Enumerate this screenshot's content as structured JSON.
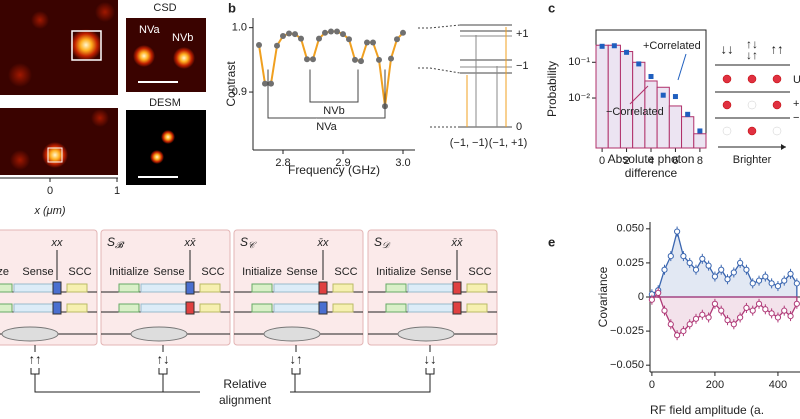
{
  "figure": {
    "panel_labels": [
      "b",
      "c",
      "e"
    ],
    "a": {
      "csd": "CSD",
      "nva": "NVa",
      "nvb": "NVb",
      "desm": "DESM",
      "xticks": [
        "0",
        "1"
      ],
      "xlabel": "x (μm)"
    },
    "b_levels": {
      "plus1": "+1",
      "minus1": "−1",
      "zero": "0",
      "state1": "(−1, −1)",
      "state2": "(−1, +1)"
    },
    "c_diagram": {
      "spins": [
        "↓↓",
        "↑↓\n↓↑",
        "↑↑"
      ],
      "caption": "Brighter",
      "side": [
        "U",
        "+",
        "−"
      ]
    },
    "d": {
      "blocks": [
        {
          "steps": [
            "ize",
            "Sense",
            "SCC"
          ],
          "gate": "xx"
        },
        {
          "name": "S",
          "sub": "𝓑",
          "steps": [
            "Initialize",
            "Sense",
            "SCC"
          ],
          "gate": "xx̄"
        },
        {
          "name": "S",
          "sub": "𝒞",
          "steps": [
            "Initialize",
            "Sense",
            "SCC"
          ],
          "gate": "x̄x"
        },
        {
          "name": "S",
          "sub": "𝒟",
          "steps": [
            "Initialize",
            "Sense",
            "SCC"
          ],
          "gate": "x̄x̄"
        }
      ],
      "alignments": [
        "↑↑",
        "↑↓",
        "↓↑",
        "↓↓"
      ],
      "caption": [
        "Relative",
        "alignment"
      ]
    }
  },
  "chart_data": [
    {
      "type": "scatter",
      "xlabel": "Frequency (GHz)",
      "ylabel": "Contrast",
      "color": "#707070",
      "fit_color": "#f0a020",
      "x": [
        2.76,
        2.77,
        2.78,
        2.79,
        2.8,
        2.81,
        2.82,
        2.83,
        2.84,
        2.85,
        2.86,
        2.87,
        2.88,
        2.89,
        2.9,
        2.91,
        2.92,
        2.93,
        2.94,
        2.95,
        2.96,
        2.97,
        2.98,
        2.99,
        3.0
      ],
      "values": [
        0.973,
        0.913,
        0.913,
        0.972,
        0.987,
        0.991,
        0.99,
        0.983,
        0.951,
        0.951,
        0.983,
        0.992,
        0.994,
        0.994,
        0.99,
        0.982,
        0.95,
        0.948,
        0.977,
        0.977,
        0.95,
        0.878,
        0.952,
        0.982,
        0.992
      ],
      "xlim": [
        2.75,
        3.02
      ],
      "ylim": [
        0.81,
        1.015
      ],
      "xticks": [
        2.8,
        2.9,
        {
          "value": 3,
          "label": "3.0"
        }
      ],
      "yticks": [
        0.9,
        {
          "value": 1,
          "label": "1.0"
        }
      ],
      "annotations": [
        "NVb",
        "NVa"
      ]
    },
    {
      "type": "step",
      "xlabel": [
        "Absolute photon",
        "difference"
      ],
      "ylabel": "Probability",
      "log_y": true,
      "x": [
        0,
        1,
        2,
        3,
        4,
        5,
        6,
        7,
        8
      ],
      "series": [
        {
          "name": "+Correlated",
          "color": "#1f5fbf",
          "values": [
            0.28,
            0.29,
            0.19,
            0.09,
            0.04,
            0.012,
            0.011,
            0.0035,
            0.0012
          ]
        },
        {
          "name": "−Correlated",
          "color": "#b0306a",
          "values": [
            0.3,
            0.3,
            0.2,
            0.1,
            0.03,
            0.02,
            0.006,
            0.003,
            0.001
          ]
        }
      ],
      "xlim": [
        -0.5,
        8.5
      ],
      "ylim": [
        0.0004,
        0.8
      ],
      "xticks": [
        0,
        2,
        4,
        6,
        8
      ],
      "yticks": [
        {
          "value": 0.1,
          "label": "10⁻¹"
        },
        {
          "value": 0.01,
          "label": "10⁻²"
        }
      ]
    },
    {
      "type": "scatter",
      "xlabel": "RF field amplitude (a.",
      "ylabel": "Covariance",
      "x": [
        0,
        20,
        40,
        60,
        80,
        100,
        120,
        140,
        160,
        180,
        200,
        220,
        240,
        260,
        280,
        300,
        320,
        340,
        360,
        380,
        400,
        420,
        440,
        460
      ],
      "series": [
        {
          "color": "#3a66b0",
          "values": [
            0.002,
            0.005,
            0.02,
            0.03,
            0.048,
            0.03,
            0.025,
            0.02,
            0.028,
            0.023,
            0.015,
            0.02,
            0.013,
            0.018,
            0.025,
            0.02,
            0.01,
            0.012,
            0.015,
            0.01,
            0.008,
            0.012,
            0.017,
            0.01
          ]
        },
        {
          "color": "#b03a78",
          "values": [
            -0.002,
            0.003,
            -0.01,
            -0.02,
            -0.028,
            -0.025,
            -0.02,
            -0.016,
            -0.013,
            -0.015,
            -0.005,
            -0.01,
            -0.017,
            -0.02,
            -0.015,
            -0.008,
            -0.01,
            -0.005,
            -0.009,
            -0.012,
            -0.015,
            -0.01,
            -0.014,
            -0.005
          ]
        }
      ],
      "xlim": [
        -6,
        470
      ],
      "ylim": [
        -0.055,
        0.055
      ],
      "xticks": [
        0,
        200,
        400
      ],
      "yticks": [
        {
          "value": 0.05,
          "label": "0.050"
        },
        {
          "value": 0.025,
          "label": "0.025"
        },
        0,
        {
          "value": -0.025,
          "label": "−0.025"
        },
        {
          "value": -0.05,
          "label": "−0.050"
        }
      ]
    }
  ]
}
